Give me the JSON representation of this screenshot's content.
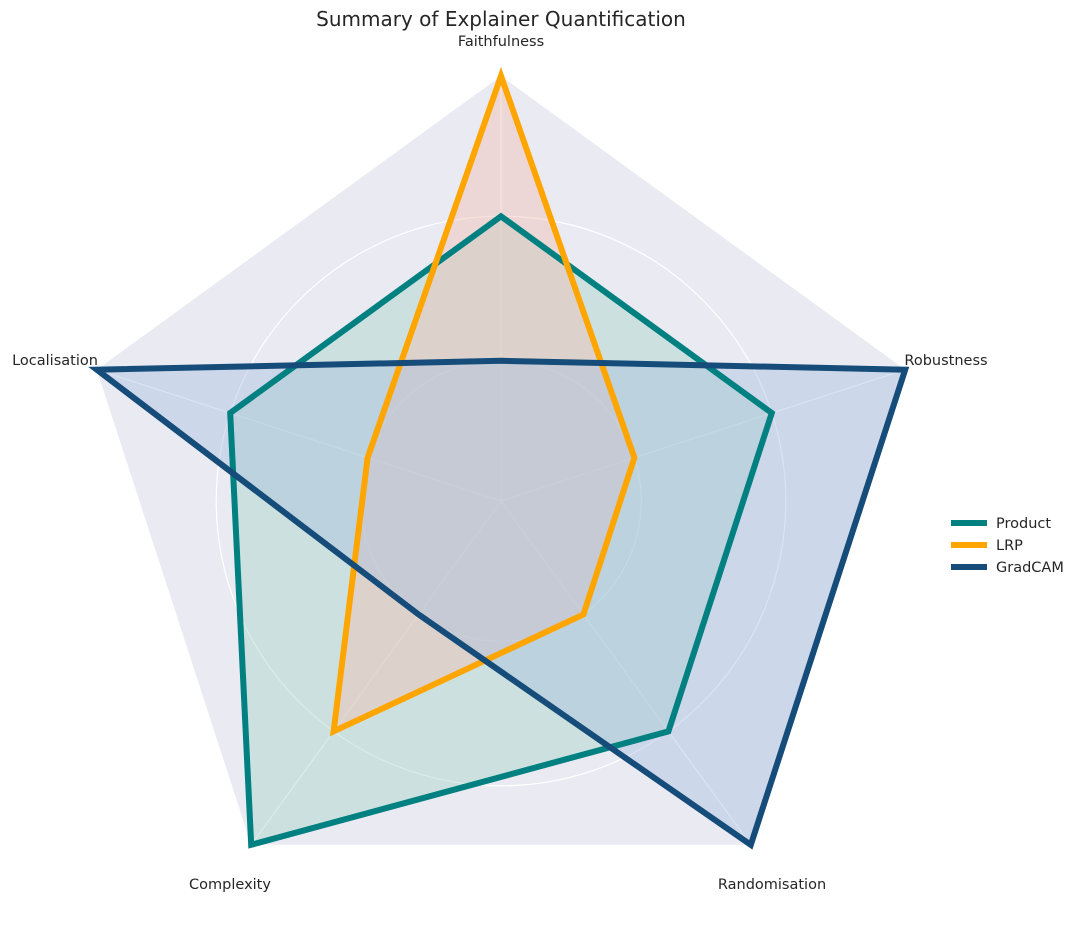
{
  "chart_data": {
    "type": "radar",
    "title": "Summary of Explainer Quantification",
    "axes": [
      "Faithfulness",
      "Robustness",
      "Randomisation",
      "Complexity",
      "Localisation"
    ],
    "rlim": [
      0,
      1.0
    ],
    "radial_gridlines": [
      0.33,
      0.67,
      1.0
    ],
    "grid": true,
    "background_color": "#eaeaf2",
    "legend_position": "right",
    "series": [
      {
        "name": "Product",
        "values": [
          0.67,
          0.67,
          0.67,
          1.0,
          0.67
        ],
        "color": "#008080",
        "fill_color": "#a9d6c8"
      },
      {
        "name": "LRP",
        "values": [
          1.0,
          0.33,
          0.33,
          0.67,
          0.33
        ],
        "color": "#ffa500",
        "fill_color": "#f2c2b4"
      },
      {
        "name": "GradCAM",
        "values": [
          0.33,
          1.0,
          1.0,
          0.33,
          1.0
        ],
        "color": "#154c79",
        "fill_color": "#aac0e0"
      }
    ]
  }
}
